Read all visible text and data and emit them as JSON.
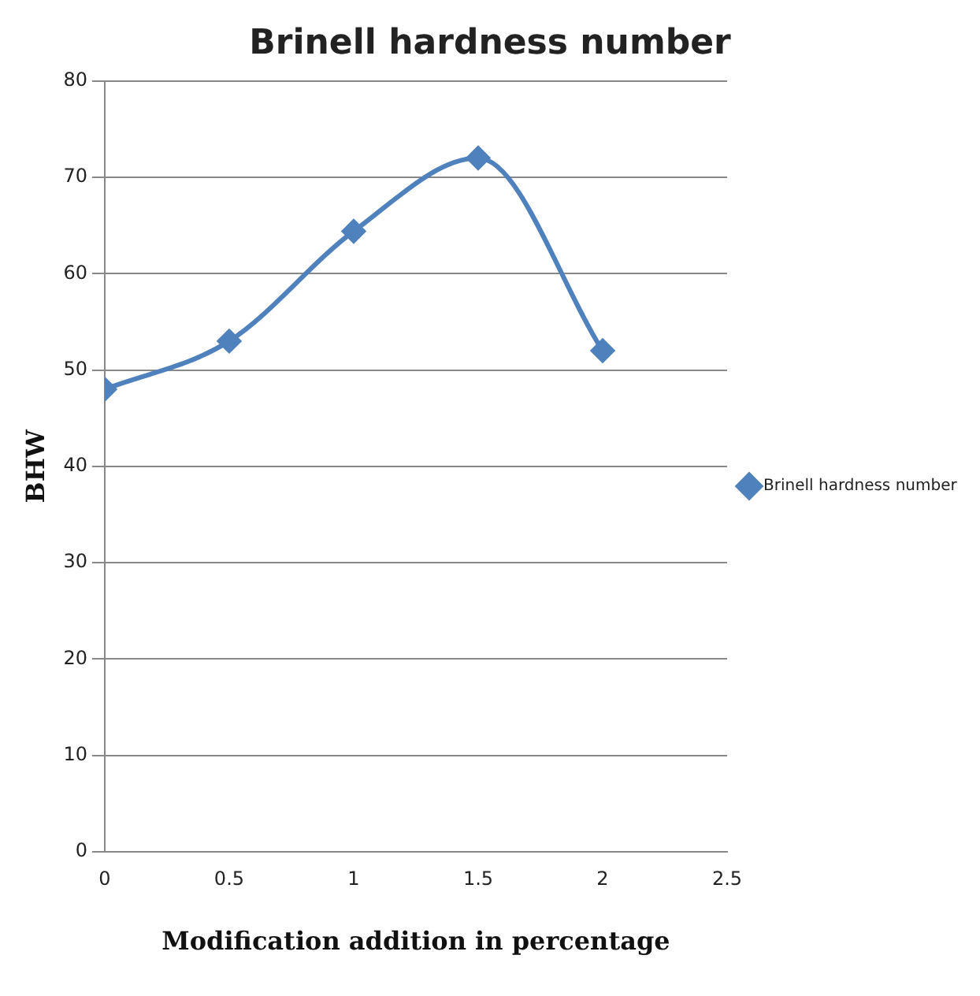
{
  "chart_data": {
    "type": "line",
    "title": "Brinell hardness number",
    "xlabel": "Modification addition in percentage",
    "ylabel": "BHW",
    "x": [
      0,
      0.5,
      1,
      1.5,
      2
    ],
    "series": [
      {
        "name": "Brinell hardness number",
        "color": "#4f81bd",
        "values": [
          48,
          53,
          64.4,
          72,
          52
        ]
      }
    ],
    "xlim": [
      0,
      2.5
    ],
    "xticks": [
      0,
      0.5,
      1,
      1.5,
      2,
      2.5
    ],
    "ylim": [
      0,
      80
    ],
    "yticks": [
      0,
      10,
      20,
      30,
      40,
      50,
      60,
      70,
      80
    ],
    "grid": "y",
    "legend": "right",
    "marker": "diamond",
    "line_style": "solid"
  }
}
